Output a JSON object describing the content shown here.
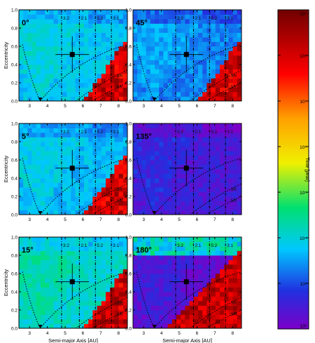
{
  "chart_data": {
    "type": "heatmap",
    "panels": [
      {
        "angle_label": "0°",
        "base_log_time": 4.0
      },
      {
        "angle_label": "45°",
        "base_log_time": 3.55
      },
      {
        "angle_label": "5°",
        "base_log_time": 3.9
      },
      {
        "angle_label": "135°",
        "base_log_time": 2.7
      },
      {
        "angle_label": "15°",
        "base_log_time": 4.3
      },
      {
        "angle_label": "180°",
        "base_log_time": 2.5
      }
    ],
    "xlabel": "Semi-major Axis [AU]",
    "ylabel": "Eccentricity",
    "xlim": [
      2.4,
      8.5
    ],
    "ylim": [
      0.0,
      1.0
    ],
    "x_ticks": [
      "3",
      "4",
      "5",
      "6",
      "7",
      "8"
    ],
    "y_ticks": [
      "0.0",
      "0.2",
      "0.4",
      "0.6",
      "0.8",
      "1.0"
    ],
    "resonances": [
      {
        "label": "3:2",
        "a": 4.8
      },
      {
        "label": "2:1",
        "a": 5.8
      },
      {
        "label": "5:2",
        "a": 6.7
      },
      {
        "label": "3:1",
        "a": 7.6
      }
    ],
    "curve_labels": [
      "3R",
      "5R"
    ],
    "marker": {
      "a": 5.4,
      "e": 0.51
    },
    "colorbar": {
      "label": "Time [year]",
      "scale": "log",
      "range_log": [
        2,
        9
      ],
      "tick_labels": [
        {
          "text": "10²",
          "log": 2
        },
        {
          "text": "10³",
          "log": 3
        },
        {
          "text": "10⁴",
          "log": 4
        },
        {
          "text": "10⁵",
          "log": 5
        },
        {
          "text": "10⁶",
          "log": 6
        },
        {
          "text": "10⁷",
          "log": 7
        },
        {
          "text": "10⁸",
          "log": 8
        },
        {
          "text": "10⁹",
          "log": 9
        }
      ]
    }
  }
}
